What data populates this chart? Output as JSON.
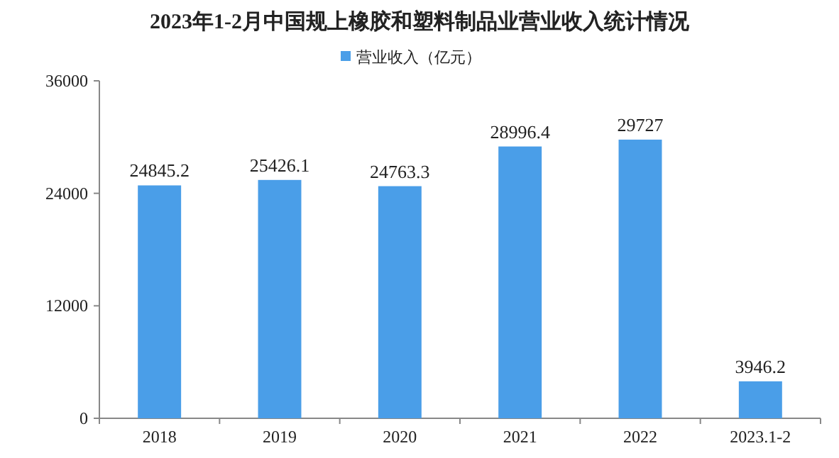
{
  "chart_data": {
    "type": "bar",
    "title": "2023年1-2月中国规上橡胶和塑料制品业营业收入统计情况",
    "categories": [
      "2018",
      "2019",
      "2020",
      "2021",
      "2022",
      "2023.1-2"
    ],
    "series": [
      {
        "name": "营业收入（亿元）",
        "color": "#4a9ee8",
        "values": [
          24845.2,
          25426.1,
          24763.3,
          28996.4,
          29727,
          3946.2
        ]
      }
    ],
    "ylim": [
      0,
      36000
    ],
    "yticks": [
      0,
      12000,
      24000,
      36000
    ],
    "data_labels": true,
    "legend": "top"
  }
}
